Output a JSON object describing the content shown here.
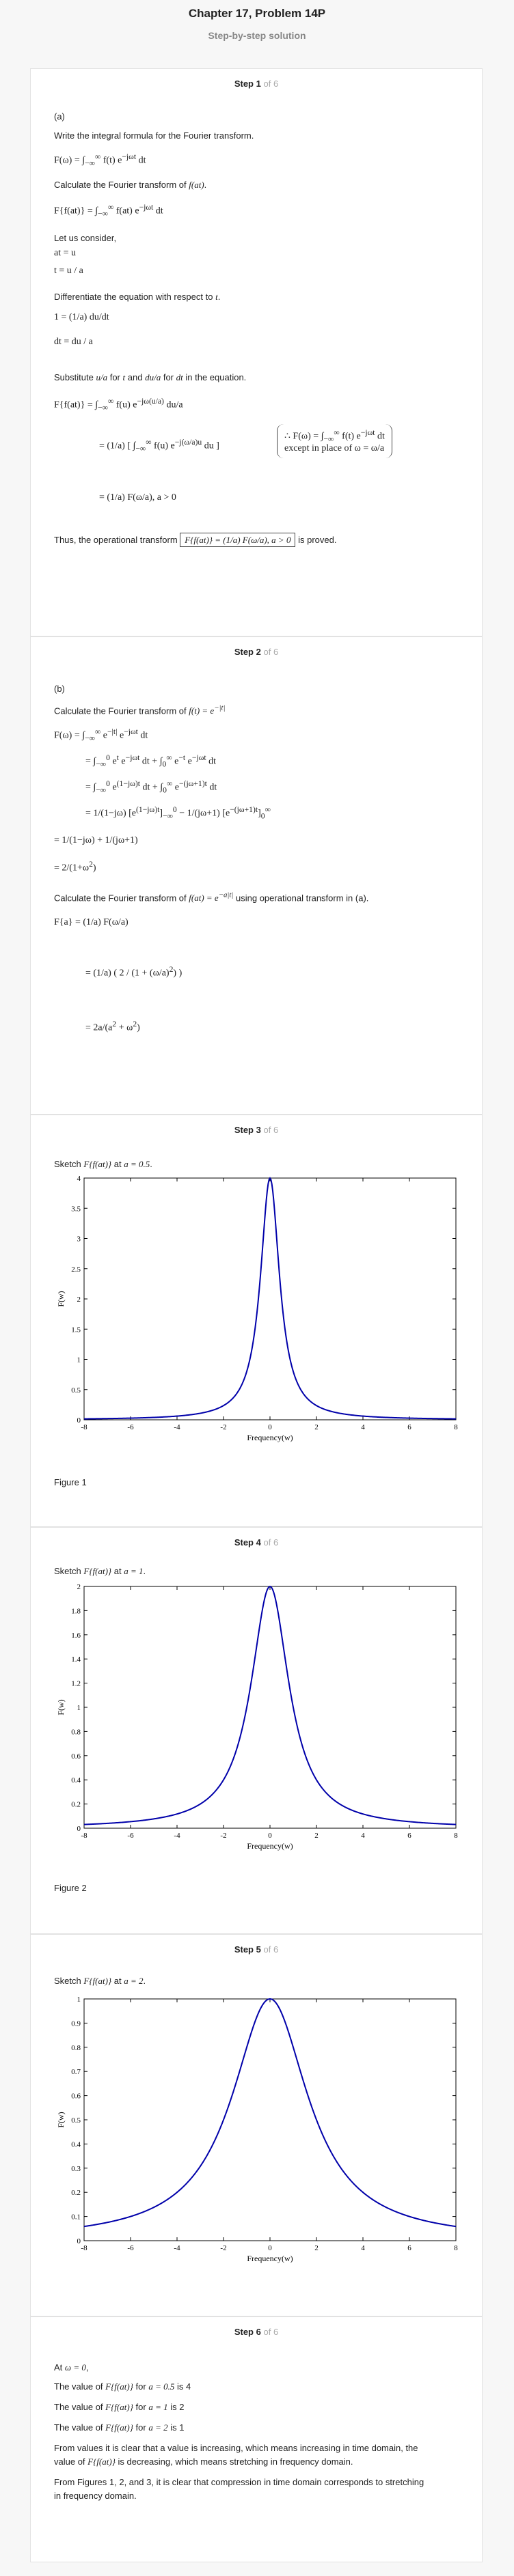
{
  "header": {
    "title": "Chapter 17, Problem 14P",
    "subtitle": "Step-by-step solution"
  },
  "step_label": "Step",
  "of_label": "of",
  "total_steps": "6",
  "steps": [
    {
      "num": "1",
      "lines": [
        "(a)",
        "Write the integral formula for the Fourier transform.",
        "Calculate the Fourier transform of",
        "Let us consider,",
        "Differentiate the equation with respect to",
        "Substitute",
        "for",
        "and",
        "for",
        "in the equation.",
        "Thus, the operational transform",
        "is proved."
      ]
    },
    {
      "num": "2",
      "lines": [
        "(b)",
        "Calculate the Fourier transform of",
        "Calculate the Fourier transform of",
        "using operational transform in (a)."
      ]
    },
    {
      "num": "3",
      "caption": "Sketch",
      "at": "at",
      "a_val": "a = 0.5",
      "figure": "Figure 1"
    },
    {
      "num": "4",
      "caption": "Sketch",
      "at": "at",
      "a_val": "a = 1",
      "figure": "Figure 2"
    },
    {
      "num": "5",
      "caption": "Sketch",
      "at": "at",
      "a_val": "a = 2",
      "figure": ""
    },
    {
      "num": "6",
      "lines": [
        "At",
        "The value of",
        "for",
        "is 4",
        "is 2",
        "is 1",
        "From values it is clear that a value is increasing, which means increasing in time domain, the",
        "value of",
        "is decreasing, which means stretching in frequency domain.",
        "From Figures 1, 2, and 3, it is clear that compression in time domain corresponds to stretching",
        "in frequency domain."
      ]
    }
  ],
  "chart_data": [
    {
      "type": "line",
      "title": "",
      "xlabel": "Frequency(w)",
      "ylabel": "F(w)",
      "xlim": [
        -8,
        8
      ],
      "ylim": [
        0,
        4
      ],
      "xticks": [
        -8,
        -6,
        -4,
        -2,
        0,
        2,
        4,
        6,
        8
      ],
      "yticks": [
        0,
        0.5,
        1,
        1.5,
        2,
        2.5,
        3,
        3.5,
        4
      ],
      "series": [
        {
          "a": 0.5,
          "formula": "2a/(a^2+w^2)"
        }
      ],
      "color": "#0000aa"
    },
    {
      "type": "line",
      "title": "",
      "xlabel": "Frequency(w)",
      "ylabel": "F(w)",
      "xlim": [
        -8,
        8
      ],
      "ylim": [
        0,
        2
      ],
      "xticks": [
        -8,
        -6,
        -4,
        -2,
        0,
        2,
        4,
        6,
        8
      ],
      "yticks": [
        0,
        0.2,
        0.4,
        0.6,
        0.8,
        1,
        1.2,
        1.4,
        1.6,
        1.8,
        2
      ],
      "series": [
        {
          "a": 1,
          "formula": "2a/(a^2+w^2)"
        }
      ],
      "color": "#0000aa"
    },
    {
      "type": "line",
      "title": "",
      "xlabel": "Frequency(w)",
      "ylabel": "F(w)",
      "xlim": [
        -8,
        8
      ],
      "ylim": [
        0,
        1
      ],
      "xticks": [
        -8,
        -6,
        -4,
        -2,
        0,
        2,
        4,
        6,
        8
      ],
      "yticks": [
        0,
        0.1,
        0.2,
        0.3,
        0.4,
        0.5,
        0.6,
        0.7,
        0.8,
        0.9,
        1
      ],
      "series": [
        {
          "a": 2,
          "formula": "2a/(a^2+w^2)"
        }
      ],
      "color": "#0000aa"
    }
  ]
}
